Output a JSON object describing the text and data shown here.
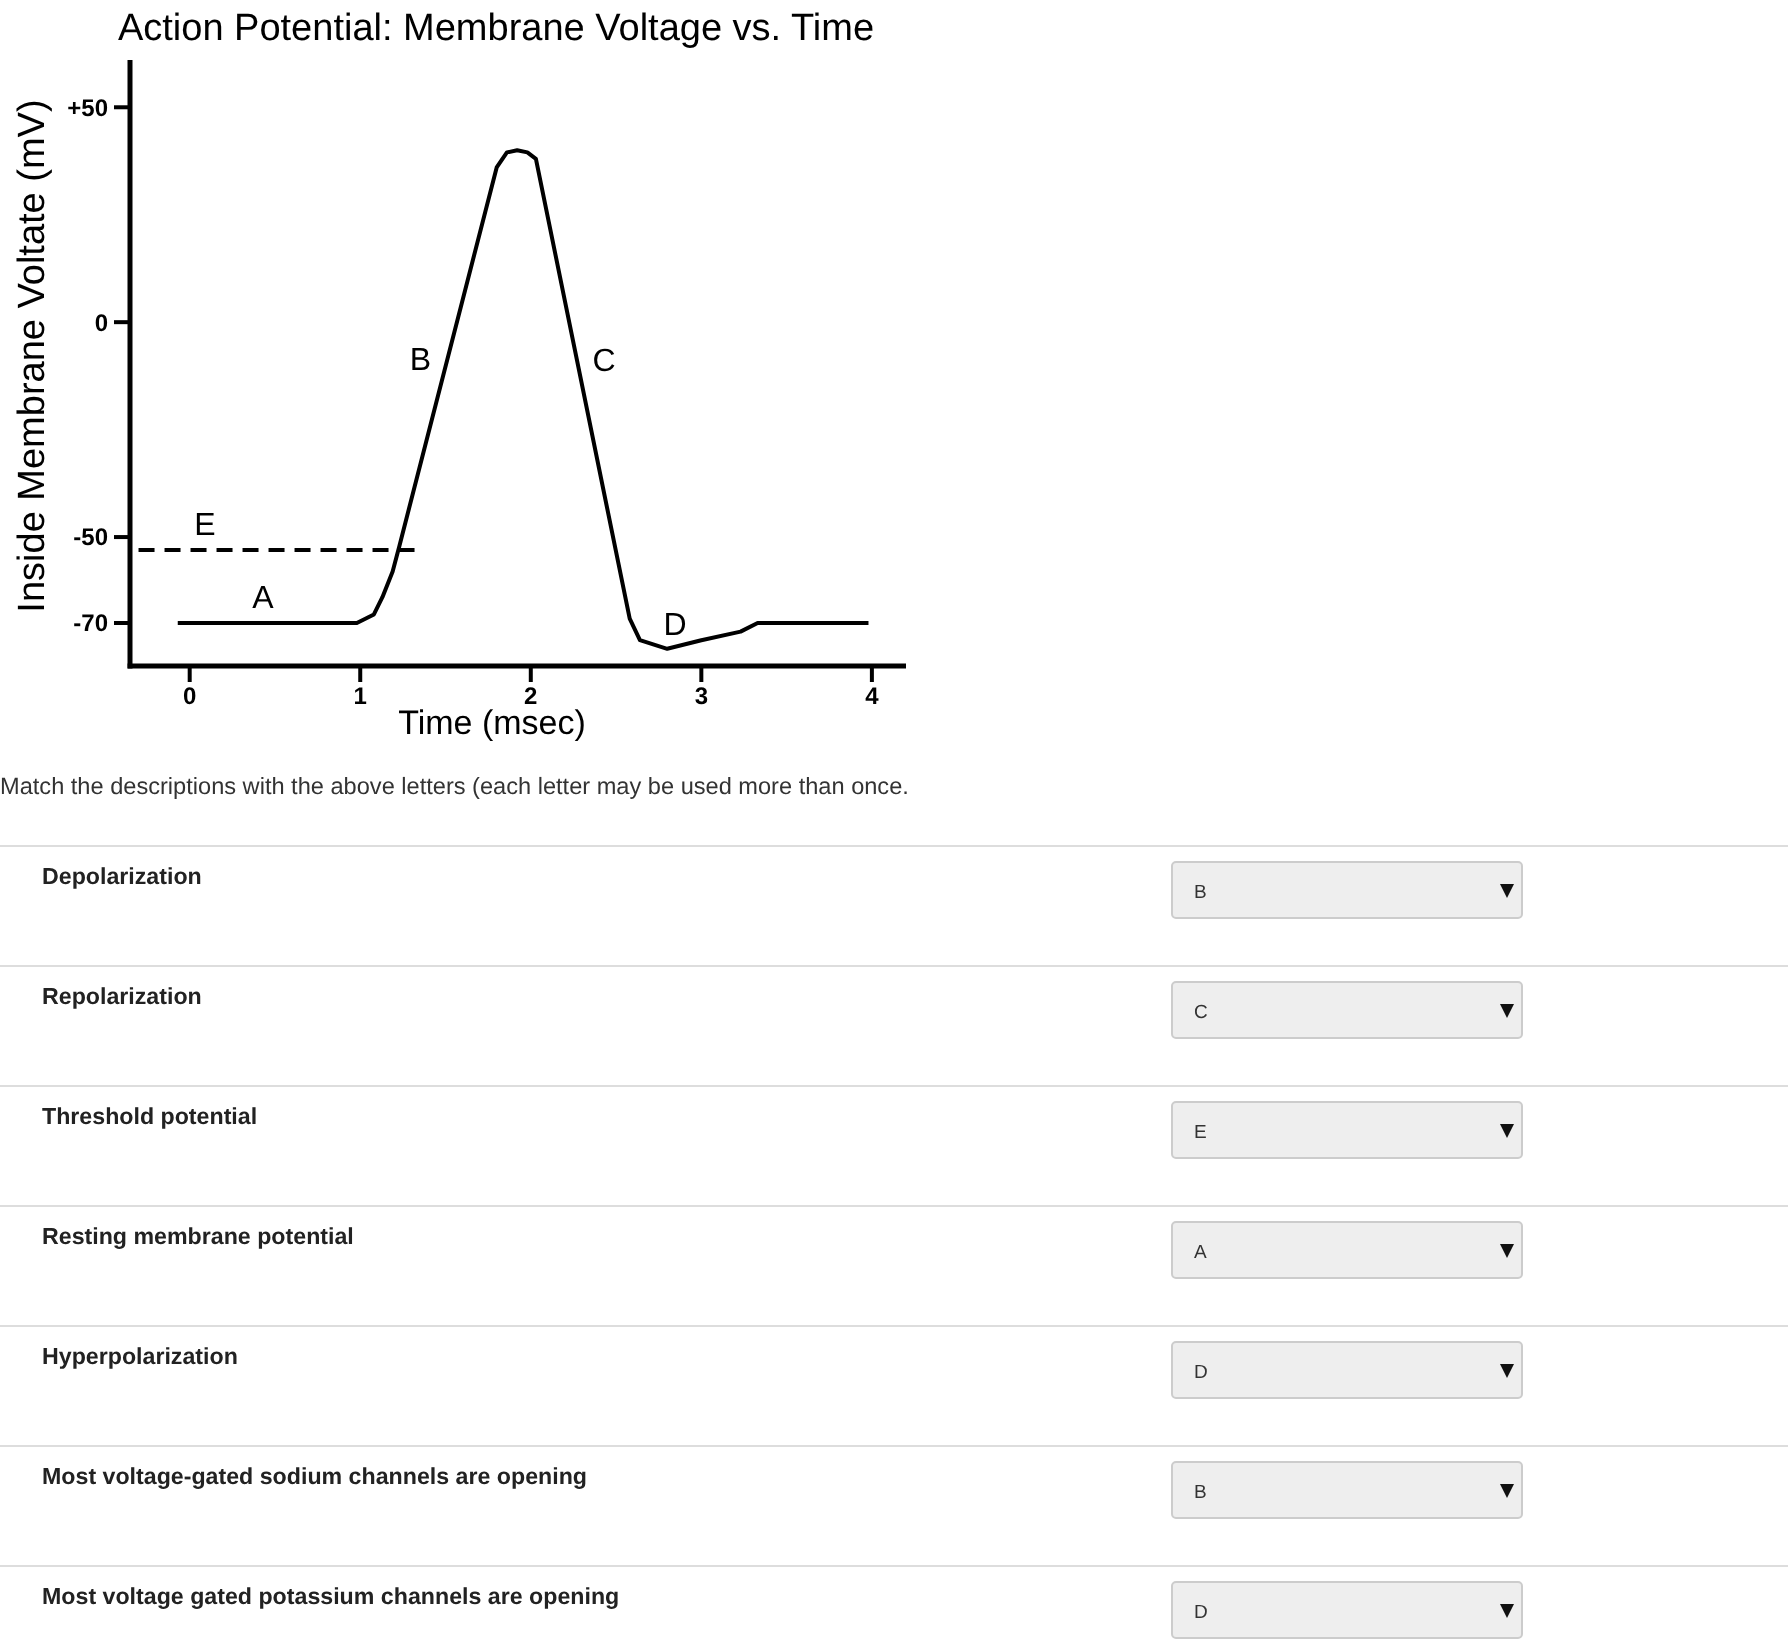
{
  "chart_data": [
    {
      "type": "line",
      "title": "Action Potential: Membrane Voltage vs. Time",
      "xlabel": "Time (msec)",
      "ylabel": "Inside Membrane Voltate (mV)",
      "xlim": [
        -0.35,
        4.2
      ],
      "xticks": [
        0,
        1,
        2,
        3,
        4
      ],
      "ylim": [
        -80,
        61
      ],
      "yticks": [
        {
          "value": 50,
          "label": "+50"
        },
        0,
        -50,
        -70
      ],
      "series": [
        {
          "color": "#000000",
          "x": [
            -0.07,
            0.98,
            1.08,
            1.13,
            1.19,
            1.23,
            1.8,
            1.86,
            1.92,
            1.98,
            2.03,
            2.58,
            2.64,
            2.8,
            3.0,
            3.23,
            3.33,
            3.98
          ],
          "values": [
            -70,
            -70,
            -68,
            -64,
            -58,
            -52,
            36,
            39.5,
            40,
            39.5,
            38,
            -69,
            -74,
            -76,
            -74,
            -72,
            -70,
            -70
          ]
        },
        {
          "type": "line",
          "color": "#000000",
          "line_style": "dashed",
          "x": [
            -0.3,
            1.34
          ],
          "values": [
            -53,
            -53
          ]
        }
      ],
      "annotations": [
        {
          "text": "A",
          "x": 0.43,
          "y": -70
        },
        {
          "text": "B",
          "x": 1.5,
          "y": -10
        },
        {
          "text": "C",
          "x": 2.28,
          "y": -10
        },
        {
          "text": "D",
          "x": 2.8,
          "y": -76
        },
        {
          "text": "E",
          "x": 0.09,
          "y": -53
        }
      ]
    },
    {
      "type": "other",
      "title": "Match the descriptions with the above letters (each letter may be used more than once.",
      "annotations": [
        "Depolarization",
        "B",
        "Repolarization",
        "C",
        "Threshold potential",
        "E",
        "Resting membrane potential",
        "A",
        "Hyperpolarization",
        "D",
        "Most voltage-gated sodium channels are opening",
        "B",
        "Most voltage gated potassium channels are opening",
        "D"
      ]
    }
  ]
}
